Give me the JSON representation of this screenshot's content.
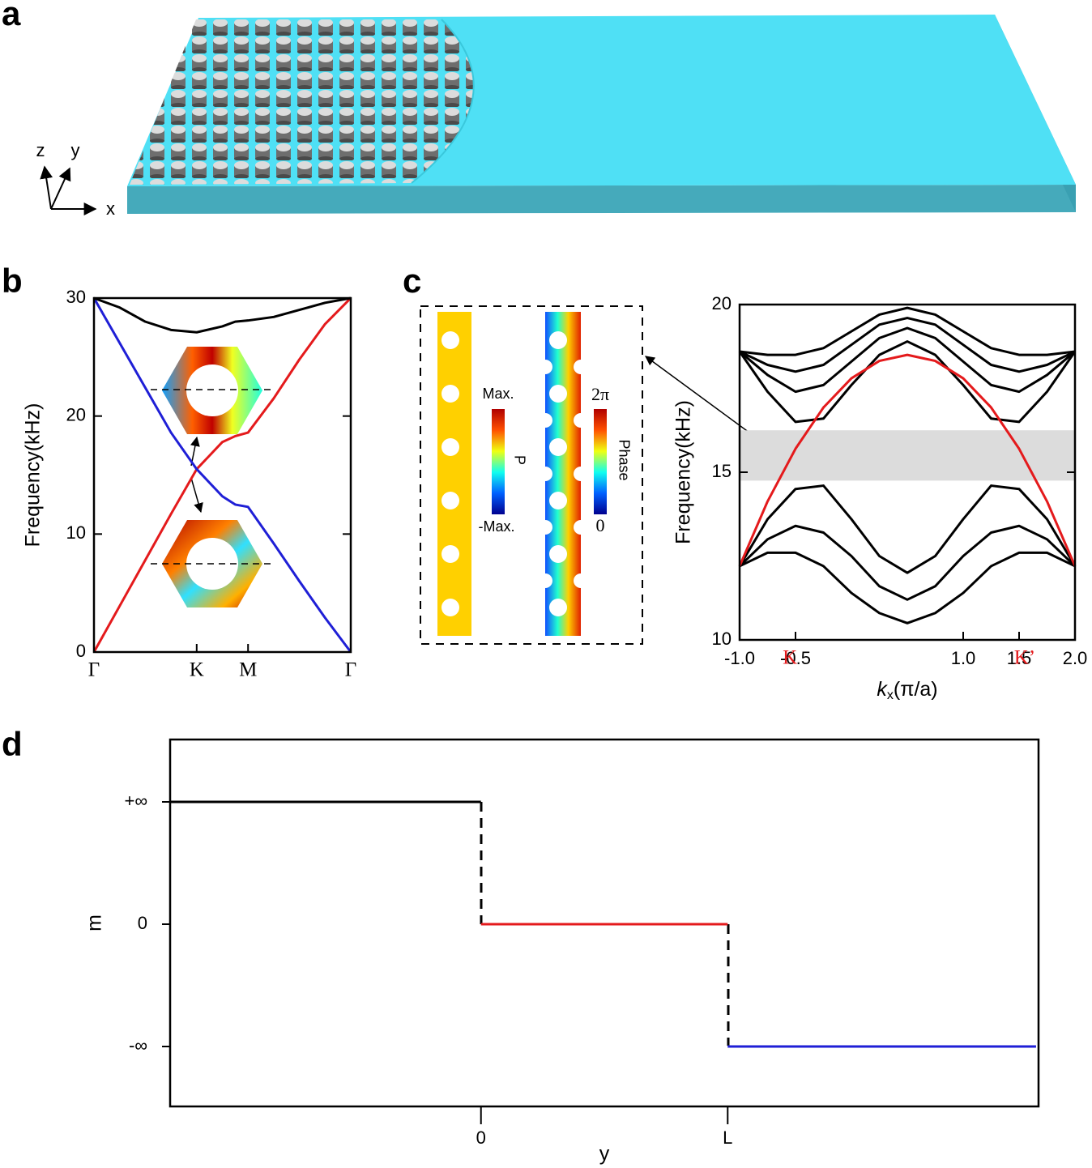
{
  "panel_labels": [
    "a",
    "b",
    "c",
    "d"
  ],
  "panel_a": {
    "axis_labels": {
      "z": "z",
      "y": "y",
      "x": "x"
    }
  },
  "panel_c_inset": {
    "colorbar_p": {
      "max": "Max.",
      "label": "P",
      "min": "-Max."
    },
    "colorbar_phase": {
      "max": "2π",
      "label": "Phase",
      "min": "0"
    }
  },
  "chart_data": [
    {
      "type": "line",
      "ylabel": "Frequency(kHz)",
      "tick_direction": "in",
      "xlim": [
        0,
        1
      ],
      "ylim": [
        0,
        30
      ],
      "yticks": [
        0,
        10,
        20,
        30
      ],
      "xticks": [
        {
          "value": 0,
          "label": "Γ"
        },
        {
          "value": 0.4,
          "label": "K"
        },
        {
          "value": 0.6,
          "label": "M"
        },
        {
          "value": 1,
          "label": "Γ"
        }
      ],
      "x": [
        0,
        0.1,
        0.2,
        0.3,
        0.4,
        0.5,
        0.55,
        0.6,
        0.7,
        0.8,
        0.9,
        1
      ],
      "series": [
        {
          "color": "#e41a1c",
          "values": [
            0,
            3.9,
            7.8,
            11.7,
            15.5,
            17.8,
            18.3,
            18.6,
            21.5,
            24.8,
            27.8,
            30
          ]
        },
        {
          "color": "#1f1fd6",
          "values": [
            30,
            26.2,
            22.4,
            18.6,
            15.5,
            13.2,
            12.5,
            12.3,
            9.2,
            6.0,
            2.9,
            0
          ]
        },
        {
          "color": "#000000",
          "values": [
            30,
            29.2,
            28.0,
            27.3,
            27.1,
            27.6,
            28.0,
            28.1,
            28.4,
            29.0,
            29.6,
            30
          ]
        }
      ]
    },
    {
      "type": "line",
      "ylabel": "Frequency(kHz)",
      "xlabel": {
        "italic": "k",
        "subscript": "x",
        "text": "(π/a)"
      },
      "tick_direction": "in",
      "xlim": [
        -1,
        2
      ],
      "ylim": [
        10,
        20
      ],
      "yticks": [
        10,
        15,
        20
      ],
      "xticks": [
        {
          "value": -1,
          "label": "-1.0"
        },
        {
          "value": -0.5,
          "label": "-0.5"
        },
        {
          "value": 1,
          "label": "1.0"
        },
        {
          "value": 1.5,
          "label": "1.5"
        },
        {
          "value": 2,
          "label": "2.0"
        }
      ],
      "band": [
        14.75,
        16.25
      ],
      "band_color": "#dcdcdc",
      "annotations": [
        {
          "text": "K",
          "x": -0.55,
          "color": "#e41a1c"
        },
        {
          "text": "K’",
          "x": 1.55,
          "color": "#e41a1c"
        }
      ],
      "x": [
        -1,
        -0.75,
        -0.5,
        -0.25,
        0,
        0.25,
        0.5,
        0.75,
        1,
        1.25,
        1.5,
        1.75,
        2
      ],
      "series": [
        {
          "color": "#000000",
          "values": [
            12.2,
            13.6,
            14.5,
            14.6,
            13.6,
            12.5,
            12.0,
            12.5,
            13.6,
            14.6,
            14.5,
            13.6,
            12.2
          ]
        },
        {
          "color": "#000000",
          "values": [
            12.2,
            13.0,
            13.4,
            13.2,
            12.5,
            11.6,
            11.2,
            11.6,
            12.5,
            13.2,
            13.4,
            13.0,
            12.2
          ]
        },
        {
          "color": "#000000",
          "values": [
            12.2,
            12.6,
            12.6,
            12.2,
            11.4,
            10.8,
            10.5,
            10.8,
            11.4,
            12.2,
            12.6,
            12.6,
            12.2
          ]
        },
        {
          "color": "#000000",
          "values": [
            18.6,
            17.4,
            16.5,
            16.6,
            17.6,
            18.5,
            18.9,
            18.5,
            17.6,
            16.6,
            16.5,
            17.4,
            18.6
          ]
        },
        {
          "color": "#000000",
          "values": [
            18.6,
            17.9,
            17.4,
            17.6,
            18.3,
            19.0,
            19.3,
            19.0,
            18.3,
            17.6,
            17.4,
            17.9,
            18.6
          ]
        },
        {
          "color": "#000000",
          "values": [
            18.6,
            18.2,
            18.0,
            18.2,
            18.8,
            19.4,
            19.6,
            19.4,
            18.8,
            18.2,
            18.0,
            18.2,
            18.6
          ]
        },
        {
          "color": "#000000",
          "values": [
            18.6,
            18.5,
            18.5,
            18.7,
            19.2,
            19.7,
            19.9,
            19.7,
            19.2,
            18.7,
            18.5,
            18.5,
            18.6
          ]
        },
        {
          "color": "#e41a1c",
          "values": [
            12.2,
            14.13,
            15.7,
            16.93,
            17.8,
            18.32,
            18.5,
            18.32,
            17.8,
            16.93,
            15.7,
            14.13,
            12.2
          ]
        }
      ]
    },
    {
      "type": "line",
      "ylabel": "m",
      "xlabel": "y",
      "tick_direction": "out",
      "xlim": [
        -1.26,
        2.26
      ],
      "ylim": [
        -1.49,
        1.51
      ],
      "xticks": [
        0,
        {
          "value": 1,
          "label": "L"
        }
      ],
      "yticks": [
        {
          "value": 1,
          "label": "+∞"
        },
        0,
        {
          "value": -1,
          "label": "-∞"
        }
      ],
      "series": [
        {
          "color": "#000000",
          "x": [
            -1.26,
            0
          ],
          "values": [
            1,
            1
          ]
        },
        {
          "color": "#e41a1c",
          "x": [
            0,
            1
          ],
          "values": [
            0,
            0
          ]
        },
        {
          "color": "#1f1fd6",
          "x": [
            1,
            2.25
          ],
          "values": [
            -1,
            -1
          ]
        }
      ]
    }
  ]
}
